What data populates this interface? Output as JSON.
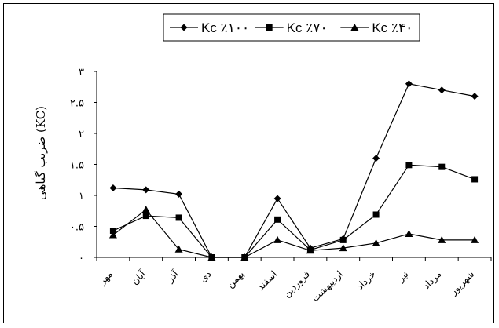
{
  "chart_data": {
    "type": "line",
    "categories": [
      "مهر",
      "آبان",
      "آذر",
      "دی",
      "بهمن",
      "اسفند",
      "فروردین",
      "اردیبهشت",
      "خرداد",
      "تیر",
      "مرداد",
      "شهریور"
    ],
    "series": [
      {
        "name": "Kc ٪۱۰۰",
        "marker": "diamond",
        "values": [
          1.12,
          1.09,
          1.02,
          0.0,
          0.0,
          0.95,
          0.15,
          0.3,
          1.6,
          2.8,
          2.7,
          2.6
        ]
      },
      {
        "name": "Kc ٪۷۰",
        "marker": "square",
        "values": [
          0.43,
          0.67,
          0.64,
          0.0,
          0.0,
          0.61,
          0.12,
          0.28,
          0.69,
          1.49,
          1.46,
          1.26
        ]
      },
      {
        "name": "Kc ٪۴۰",
        "marker": "triangle",
        "values": [
          0.36,
          0.77,
          0.13,
          0.0,
          0.0,
          0.28,
          0.11,
          0.15,
          0.23,
          0.38,
          0.28,
          0.28
        ]
      }
    ],
    "y_ticks": [
      {
        "value": 0,
        "label": "۰"
      },
      {
        "value": 0.5,
        "label": "۰.۵"
      },
      {
        "value": 1,
        "label": "۱"
      },
      {
        "value": 1.5,
        "label": "۱.۵"
      },
      {
        "value": 2,
        "label": "۲"
      },
      {
        "value": 2.5,
        "label": "۲.۵"
      },
      {
        "value": 3,
        "label": "۳"
      }
    ],
    "ylim": [
      0,
      3
    ],
    "ylabel": "ضریب گیاهی (KC)",
    "xlabel": "",
    "title": "",
    "grid": false,
    "legend_position": "top-center",
    "colors": {
      "line": "#000000",
      "background": "#ffffff"
    }
  }
}
